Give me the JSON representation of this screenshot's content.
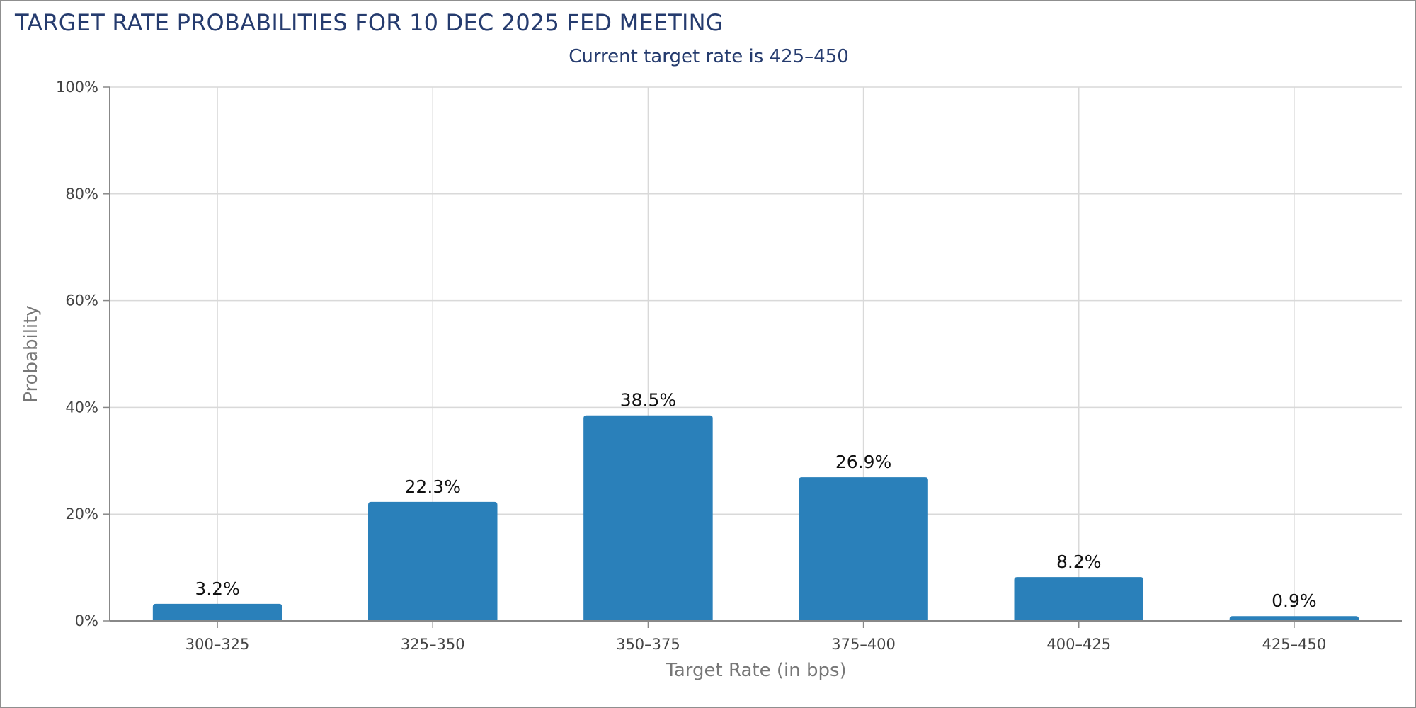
{
  "chart_data": {
    "type": "bar",
    "title": "TARGET RATE PROBABILITIES FOR 10 DEC 2025 FED MEETING",
    "subtitle": "Current target rate is 425–450",
    "xlabel": "Target Rate (in bps)",
    "ylabel": "Probability",
    "categories": [
      "300–325",
      "325–350",
      "350–375",
      "375–400",
      "400–425",
      "425–450"
    ],
    "values": [
      3.2,
      22.3,
      38.5,
      26.9,
      8.2,
      0.9
    ],
    "value_labels": [
      "3.2%",
      "22.3%",
      "38.5%",
      "26.9%",
      "8.2%",
      "0.9%"
    ],
    "ylim": [
      0,
      100
    ],
    "yticks": [
      0,
      20,
      40,
      60,
      80,
      100
    ],
    "ytick_labels": [
      "0%",
      "20%",
      "40%",
      "60%",
      "80%",
      "100%"
    ],
    "grid": true,
    "legend": "none",
    "colors": {
      "bar": "#2a80ba",
      "grid": "#d9d9d9",
      "axis": "#888888",
      "title": "#253b6e"
    }
  }
}
